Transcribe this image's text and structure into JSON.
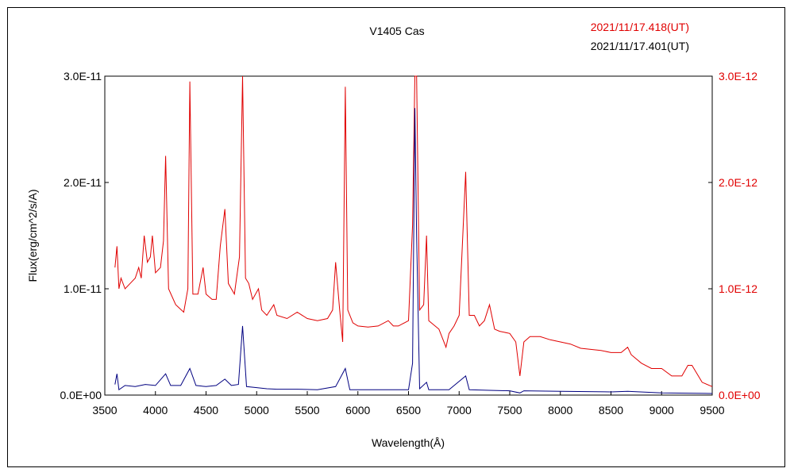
{
  "chart_data": {
    "type": "line",
    "title": "V1405 Cas",
    "xlabel": "Wavelength(Å)",
    "ylabel": "Flux(erg/cm^2/s/A)",
    "xlim": [
      3500,
      9500
    ],
    "ylim_left": [
      0,
      3e-11
    ],
    "ylim_right": [
      0,
      3e-12
    ],
    "x_ticks": [
      "3500",
      "4000",
      "4500",
      "5000",
      "5500",
      "6000",
      "6500",
      "7000",
      "7500",
      "8000",
      "8500",
      "9000",
      "9500"
    ],
    "y_ticks_left": [
      "0.0E+00",
      "1.0E-11",
      "2.0E-11",
      "3.0E-11"
    ],
    "y_ticks_right": [
      "0.0E+00",
      "1.0E-12",
      "2.0E-12",
      "3.0E-12"
    ],
    "grid": false,
    "series": [
      {
        "name": "2021/11/17.418(UT)",
        "color": "#e00000",
        "axis": "right",
        "points": [
          [
            3600,
            1.2e-12
          ],
          [
            3620,
            1.4e-12
          ],
          [
            3640,
            1e-12
          ],
          [
            3660,
            1.1e-12
          ],
          [
            3700,
            1e-12
          ],
          [
            3750,
            1.05e-12
          ],
          [
            3800,
            1.1e-12
          ],
          [
            3835,
            1.2e-12
          ],
          [
            3860,
            1.1e-12
          ],
          [
            3889,
            1.5e-12
          ],
          [
            3920,
            1.25e-12
          ],
          [
            3950,
            1.3e-12
          ],
          [
            3970,
            1.5e-12
          ],
          [
            4000,
            1.15e-12
          ],
          [
            4050,
            1.2e-12
          ],
          [
            4080,
            1.45e-12
          ],
          [
            4101,
            2.25e-12
          ],
          [
            4130,
            1e-12
          ],
          [
            4200,
            8.5e-13
          ],
          [
            4280,
            7.8e-13
          ],
          [
            4320,
            1e-12
          ],
          [
            4340,
            2.95e-12
          ],
          [
            4370,
            9.5e-13
          ],
          [
            4420,
            9.5e-13
          ],
          [
            4471,
            1.2e-12
          ],
          [
            4500,
            9.5e-13
          ],
          [
            4560,
            9e-13
          ],
          [
            4600,
            9e-13
          ],
          [
            4640,
            1.4e-12
          ],
          [
            4686,
            1.75e-12
          ],
          [
            4720,
            1.05e-12
          ],
          [
            4780,
            9.5e-13
          ],
          [
            4830,
            1.3e-12
          ],
          [
            4861,
            3e-12
          ],
          [
            4890,
            1.1e-12
          ],
          [
            4922,
            1.05e-12
          ],
          [
            4960,
            9e-13
          ],
          [
            5018,
            1e-12
          ],
          [
            5050,
            8e-13
          ],
          [
            5100,
            7.5e-13
          ],
          [
            5169,
            8.5e-13
          ],
          [
            5200,
            7.5e-13
          ],
          [
            5300,
            7.2e-13
          ],
          [
            5400,
            7.8e-13
          ],
          [
            5500,
            7.2e-13
          ],
          [
            5600,
            7e-13
          ],
          [
            5700,
            7.2e-13
          ],
          [
            5750,
            8e-13
          ],
          [
            5780,
            1.25e-12
          ],
          [
            5820,
            8e-13
          ],
          [
            5850,
            5e-13
          ],
          [
            5876,
            2.9e-12
          ],
          [
            5900,
            8e-13
          ],
          [
            5950,
            6.8e-13
          ],
          [
            6000,
            6.5e-13
          ],
          [
            6100,
            6.4e-13
          ],
          [
            6200,
            6.5e-13
          ],
          [
            6300,
            7e-13
          ],
          [
            6350,
            6.5e-13
          ],
          [
            6400,
            6.5e-13
          ],
          [
            6500,
            7e-13
          ],
          [
            6540,
            1.6e-12
          ],
          [
            6563,
            3e-12
          ],
          [
            6580,
            3e-12
          ],
          [
            6610,
            8e-13
          ],
          [
            6650,
            8.5e-13
          ],
          [
            6678,
            1.5e-12
          ],
          [
            6700,
            7e-13
          ],
          [
            6800,
            6.2e-13
          ],
          [
            6870,
            4.5e-13
          ],
          [
            6900,
            5.8e-13
          ],
          [
            6950,
            6.5e-13
          ],
          [
            7000,
            7.5e-13
          ],
          [
            7065,
            2.1e-12
          ],
          [
            7100,
            7.5e-13
          ],
          [
            7150,
            7.5e-13
          ],
          [
            7200,
            6.5e-13
          ],
          [
            7250,
            7e-13
          ],
          [
            7300,
            8.5e-13
          ],
          [
            7350,
            6.2e-13
          ],
          [
            7400,
            6e-13
          ],
          [
            7500,
            5.8e-13
          ],
          [
            7560,
            5e-13
          ],
          [
            7600,
            1.8e-13
          ],
          [
            7640,
            5e-13
          ],
          [
            7700,
            5.5e-13
          ],
          [
            7800,
            5.5e-13
          ],
          [
            7900,
            5.2e-13
          ],
          [
            8000,
            5e-13
          ],
          [
            8100,
            4.8e-13
          ],
          [
            8200,
            4.4e-13
          ],
          [
            8300,
            4.3e-13
          ],
          [
            8400,
            4.2e-13
          ],
          [
            8500,
            4e-13
          ],
          [
            8600,
            4e-13
          ],
          [
            8665,
            4.5e-13
          ],
          [
            8700,
            3.8e-13
          ],
          [
            8800,
            3e-13
          ],
          [
            8900,
            2.5e-13
          ],
          [
            9000,
            2.5e-13
          ],
          [
            9100,
            1.8e-13
          ],
          [
            9200,
            1.8e-13
          ],
          [
            9260,
            2.8e-13
          ],
          [
            9300,
            2.8e-13
          ],
          [
            9400,
            1.2e-13
          ],
          [
            9500,
            8e-14
          ]
        ]
      },
      {
        "name": "2021/11/17.401(UT)",
        "color": "#000080",
        "axis": "left",
        "points": [
          [
            3600,
            1e-12
          ],
          [
            3620,
            2e-12
          ],
          [
            3640,
            5e-13
          ],
          [
            3700,
            9e-13
          ],
          [
            3800,
            8e-13
          ],
          [
            3900,
            1e-12
          ],
          [
            4000,
            9e-13
          ],
          [
            4101,
            2e-12
          ],
          [
            4150,
            9e-13
          ],
          [
            4250,
            9e-13
          ],
          [
            4340,
            2.5e-12
          ],
          [
            4400,
            9e-13
          ],
          [
            4500,
            8e-13
          ],
          [
            4600,
            9e-13
          ],
          [
            4686,
            1.5e-12
          ],
          [
            4750,
            9e-13
          ],
          [
            4820,
            1e-12
          ],
          [
            4861,
            6.5e-12
          ],
          [
            4900,
            8e-13
          ],
          [
            5000,
            7e-13
          ],
          [
            5100,
            6e-13
          ],
          [
            5200,
            5.5e-13
          ],
          [
            5400,
            5.5e-13
          ],
          [
            5600,
            5e-13
          ],
          [
            5780,
            8e-13
          ],
          [
            5876,
            2.5e-12
          ],
          [
            5920,
            5e-13
          ],
          [
            6000,
            5e-13
          ],
          [
            6200,
            5e-13
          ],
          [
            6400,
            5e-13
          ],
          [
            6500,
            5e-13
          ],
          [
            6540,
            3e-12
          ],
          [
            6563,
            2.7e-11
          ],
          [
            6580,
            1.5e-11
          ],
          [
            6610,
            6e-13
          ],
          [
            6678,
            1.2e-12
          ],
          [
            6700,
            5e-13
          ],
          [
            6900,
            5e-13
          ],
          [
            7065,
            1.8e-12
          ],
          [
            7100,
            5e-13
          ],
          [
            7300,
            4.5e-13
          ],
          [
            7500,
            4e-13
          ],
          [
            7600,
            2e-13
          ],
          [
            7640,
            4e-13
          ],
          [
            8000,
            3.5e-13
          ],
          [
            8500,
            3e-13
          ],
          [
            8665,
            3.5e-13
          ],
          [
            9000,
            2e-13
          ],
          [
            9500,
            1.5e-13
          ]
        ]
      }
    ]
  }
}
